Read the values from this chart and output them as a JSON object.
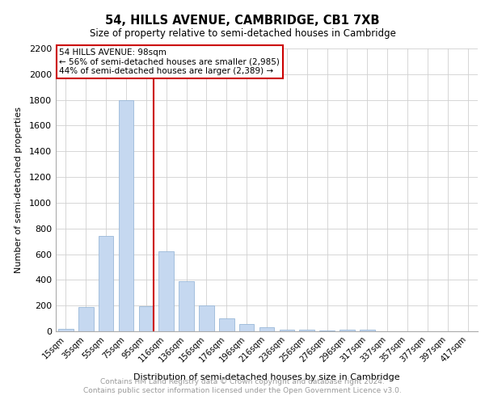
{
  "title": "54, HILLS AVENUE, CAMBRIDGE, CB1 7XB",
  "subtitle": "Size of property relative to semi-detached houses in Cambridge",
  "xlabel": "Distribution of semi-detached houses by size in Cambridge",
  "ylabel": "Number of semi-detached properties",
  "categories": [
    "15sqm",
    "35sqm",
    "55sqm",
    "75sqm",
    "95sqm",
    "116sqm",
    "136sqm",
    "156sqm",
    "176sqm",
    "196sqm",
    "216sqm",
    "236sqm",
    "256sqm",
    "276sqm",
    "296sqm",
    "317sqm",
    "337sqm",
    "357sqm",
    "377sqm",
    "397sqm",
    "417sqm"
  ],
  "values": [
    20,
    190,
    740,
    1800,
    195,
    625,
    390,
    200,
    100,
    55,
    30,
    15,
    10,
    5,
    10,
    10,
    0,
    0,
    0,
    0,
    0
  ],
  "bar_color": "#c5d8f0",
  "bar_edge_color": "#9ab8d8",
  "red_line_index": 4,
  "red_line_label": "54 HILLS AVENUE: 98sqm",
  "annotation_line1": "← 56% of semi-detached houses are smaller (2,985)",
  "annotation_line2": "44% of semi-detached houses are larger (2,389) →",
  "red_color": "#cc0000",
  "ylim": [
    0,
    2200
  ],
  "yticks": [
    0,
    200,
    400,
    600,
    800,
    1000,
    1200,
    1400,
    1600,
    1800,
    2000,
    2200
  ],
  "footer1": "Contains HM Land Registry data © Crown copyright and database right 2024.",
  "footer2": "Contains public sector information licensed under the Open Government Licence v3.0.",
  "bg_color": "#ffffff",
  "grid_color": "#d0d0d0"
}
